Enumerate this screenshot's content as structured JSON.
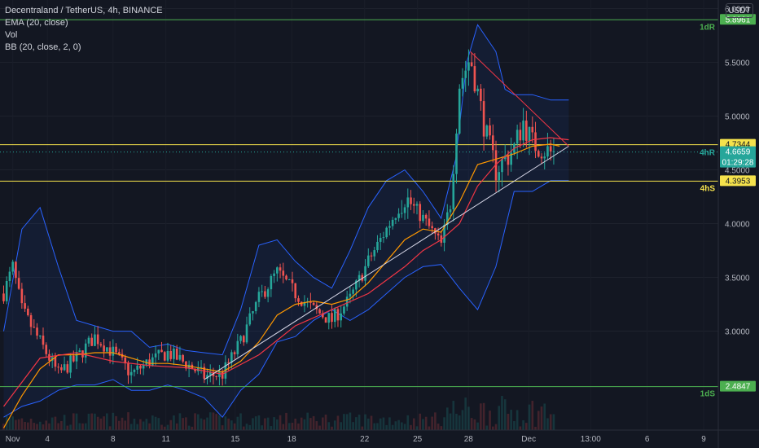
{
  "legend": {
    "symbol": "Decentraland / TetherUS, 4h, BINANCE",
    "ema": "EMA (20, close)",
    "vol": "Vol",
    "bb": "BB (20, close, 2, 0)"
  },
  "currency_button": "USDT",
  "colors": {
    "background": "#131722",
    "up": "#26a69a",
    "down": "#ef5350",
    "bb_band": "#2962ff",
    "ema": "#ff9800",
    "ma_red": "#f23645",
    "trendline": "#d8d8e8",
    "resistance_1d": "#4caf50",
    "level_4h": "#f5e24c",
    "support_1d": "#4caf50"
  },
  "chart_data": {
    "type": "candlestick",
    "x_labels": [
      "Nov",
      "4",
      "8",
      "11",
      "15",
      "18",
      "22",
      "25",
      "28",
      "Dec",
      "13:00",
      "6",
      "9"
    ],
    "y_ticks": [
      "6.0000",
      "5.5000",
      "5.0000",
      "4.5000",
      "4.0000",
      "3.5000",
      "3.0000"
    ],
    "y_range": [
      2.08,
      6.08
    ],
    "levels": [
      {
        "label": "1dR",
        "value": 5.8961,
        "badge": "5.8961"
      },
      {
        "label": "",
        "value": 4.7344,
        "badge": "4.7344"
      },
      {
        "label": "4hR",
        "value": 4.6659,
        "badge": "4.6659"
      },
      {
        "label": "4hS",
        "value": 4.3953,
        "badge": "4.3953"
      },
      {
        "label": "1dS",
        "value": 2.4847,
        "badge": "2.4847"
      }
    ],
    "current_price": "4.6659",
    "countdown": "01:29:28",
    "close_path": [
      [
        0,
        3.35
      ],
      [
        0.5,
        3.6
      ],
      [
        1,
        3.2
      ],
      [
        2,
        2.9
      ],
      [
        3,
        2.6
      ],
      [
        4,
        2.75
      ],
      [
        5,
        2.95
      ],
      [
        6,
        2.8
      ],
      [
        7,
        2.6
      ],
      [
        8,
        2.72
      ],
      [
        9,
        2.8
      ],
      [
        10,
        2.7
      ],
      [
        11,
        2.58
      ],
      [
        12,
        2.6
      ],
      [
        13,
        2.9
      ],
      [
        14,
        3.3
      ],
      [
        15,
        3.55
      ],
      [
        16,
        3.35
      ],
      [
        17,
        3.2
      ],
      [
        18,
        3.1
      ],
      [
        19,
        3.3
      ],
      [
        20,
        3.65
      ],
      [
        21,
        3.95
      ],
      [
        22,
        4.25
      ],
      [
        23,
        4.05
      ],
      [
        24,
        3.8
      ],
      [
        24.5,
        4.2
      ],
      [
        25,
        5.3
      ],
      [
        25.6,
        5.55
      ],
      [
        26.5,
        4.8
      ],
      [
        27,
        4.5
      ],
      [
        28,
        4.7
      ],
      [
        28.5,
        4.95
      ],
      [
        29,
        4.75
      ],
      [
        30,
        4.66
      ],
      [
        30.3,
        4.66
      ]
    ],
    "x_range": [
      -0.2,
      39.2
    ],
    "ema_path": [
      [
        0,
        2.1
      ],
      [
        1,
        2.4
      ],
      [
        2,
        2.65
      ],
      [
        3,
        2.78
      ],
      [
        4,
        2.78
      ],
      [
        5,
        2.8
      ],
      [
        6,
        2.8
      ],
      [
        7,
        2.75
      ],
      [
        8,
        2.7
      ],
      [
        9,
        2.7
      ],
      [
        10,
        2.68
      ],
      [
        11,
        2.65
      ],
      [
        12,
        2.62
      ],
      [
        13,
        2.72
      ],
      [
        14,
        2.9
      ],
      [
        15,
        3.15
      ],
      [
        16,
        3.25
      ],
      [
        17,
        3.28
      ],
      [
        18,
        3.25
      ],
      [
        19,
        3.3
      ],
      [
        20,
        3.45
      ],
      [
        21,
        3.65
      ],
      [
        22,
        3.85
      ],
      [
        23,
        3.95
      ],
      [
        24,
        3.92
      ],
      [
        25,
        4.2
      ],
      [
        26,
        4.55
      ],
      [
        27,
        4.6
      ],
      [
        28,
        4.65
      ],
      [
        29,
        4.72
      ],
      [
        30,
        4.74
      ],
      [
        30.5,
        4.72
      ]
    ],
    "ma_path": [
      [
        0,
        2.3
      ],
      [
        2,
        2.75
      ],
      [
        4,
        2.8
      ],
      [
        6,
        2.72
      ],
      [
        8,
        2.68
      ],
      [
        10,
        2.66
      ],
      [
        12,
        2.6
      ],
      [
        14,
        2.78
      ],
      [
        16,
        3.05
      ],
      [
        18,
        3.2
      ],
      [
        20,
        3.35
      ],
      [
        22,
        3.6
      ],
      [
        23,
        3.75
      ],
      [
        24,
        3.85
      ],
      [
        25,
        4.0
      ],
      [
        26,
        4.35
      ],
      [
        27,
        4.55
      ],
      [
        28,
        4.7
      ],
      [
        29,
        4.78
      ],
      [
        30,
        4.8
      ],
      [
        31,
        4.78
      ]
    ],
    "bb_upper": [
      [
        0,
        3.0
      ],
      [
        1,
        3.95
      ],
      [
        2,
        4.15
      ],
      [
        3,
        3.6
      ],
      [
        4,
        3.1
      ],
      [
        5,
        3.05
      ],
      [
        6,
        3.0
      ],
      [
        7,
        3.0
      ],
      [
        8,
        2.85
      ],
      [
        9,
        2.88
      ],
      [
        10,
        2.82
      ],
      [
        11,
        2.8
      ],
      [
        12,
        2.78
      ],
      [
        13,
        3.2
      ],
      [
        14,
        3.8
      ],
      [
        15,
        3.85
      ],
      [
        16,
        3.65
      ],
      [
        17,
        3.5
      ],
      [
        18,
        3.4
      ],
      [
        19,
        3.75
      ],
      [
        20,
        4.15
      ],
      [
        21,
        4.4
      ],
      [
        22,
        4.5
      ],
      [
        23,
        4.3
      ],
      [
        24,
        4.05
      ],
      [
        24.8,
        4.6
      ],
      [
        25.4,
        5.5
      ],
      [
        26,
        5.85
      ],
      [
        27,
        5.6
      ],
      [
        27.5,
        5.25
      ],
      [
        28,
        5.2
      ],
      [
        29,
        5.2
      ],
      [
        30,
        5.15
      ],
      [
        31,
        5.15
      ]
    ],
    "bb_lower": [
      [
        0,
        2.2
      ],
      [
        1,
        2.3
      ],
      [
        2,
        2.35
      ],
      [
        3,
        2.45
      ],
      [
        4,
        2.5
      ],
      [
        5,
        2.5
      ],
      [
        6,
        2.55
      ],
      [
        7,
        2.45
      ],
      [
        8,
        2.45
      ],
      [
        9,
        2.5
      ],
      [
        10,
        2.45
      ],
      [
        11,
        2.38
      ],
      [
        12,
        2.2
      ],
      [
        13,
        2.45
      ],
      [
        14,
        2.6
      ],
      [
        15,
        2.9
      ],
      [
        16,
        2.95
      ],
      [
        17,
        3.1
      ],
      [
        18,
        3.2
      ],
      [
        19,
        3.1
      ],
      [
        20,
        3.2
      ],
      [
        21,
        3.35
      ],
      [
        22,
        3.5
      ],
      [
        23,
        3.6
      ],
      [
        24,
        3.62
      ],
      [
        25,
        3.4
      ],
      [
        26,
        3.2
      ],
      [
        27,
        3.6
      ],
      [
        28,
        4.3
      ],
      [
        29,
        4.3
      ],
      [
        30,
        4.4
      ],
      [
        31,
        4.4
      ]
    ],
    "trendline_up": [
      [
        11,
        2.55
      ],
      [
        31,
        4.72
      ]
    ],
    "trendline_down": [
      [
        25.6,
        5.6
      ],
      [
        31,
        4.72
      ]
    ]
  }
}
